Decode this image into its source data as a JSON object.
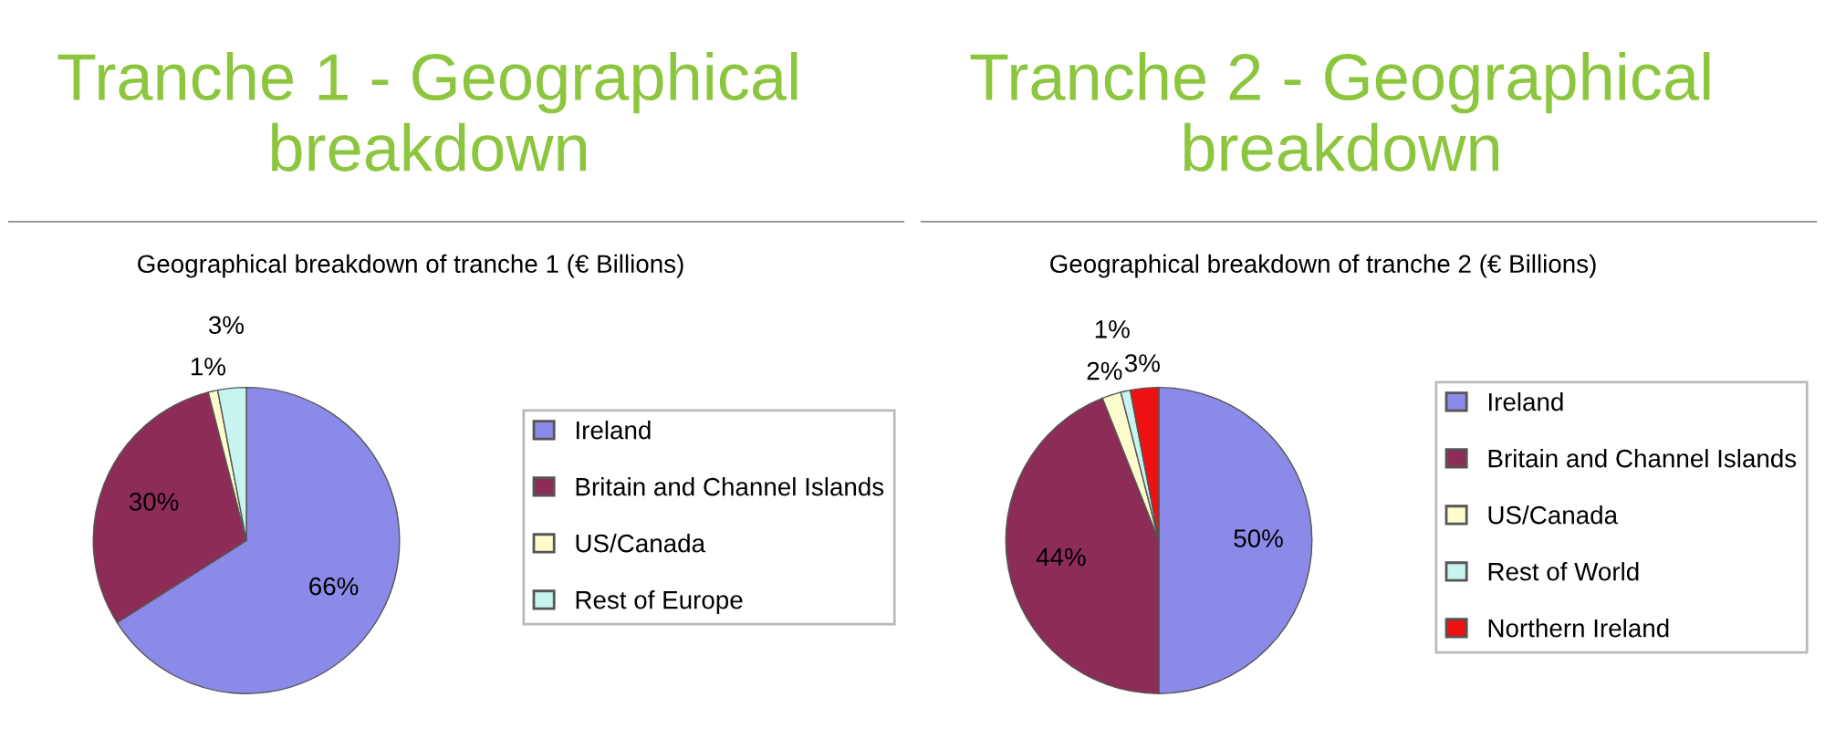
{
  "chart_data": [
    {
      "type": "pie",
      "title": "Tranche 1 - Geographical breakdown",
      "subtitle": "Geographical breakdown of tranche 1 (€ Billions)",
      "categories": [
        "Ireland",
        "Britain and Channel Islands",
        "US/Canada",
        "Rest of Europe"
      ],
      "values": [
        66,
        30,
        1,
        3
      ],
      "value_labels": [
        "66%",
        "30%",
        "1%",
        "3%"
      ],
      "colors": [
        "#8b8ae8",
        "#8e2c58",
        "#fdfccc",
        "#c8f4f0"
      ],
      "legend": "right"
    },
    {
      "type": "pie",
      "title": "Tranche 2 - Geographical breakdown",
      "subtitle": "Geographical breakdown of tranche 2 (€ Billions)",
      "categories": [
        "Ireland",
        "Britain and Channel Islands",
        "US/Canada",
        "Rest of World",
        "Northern Ireland"
      ],
      "values": [
        50,
        44,
        2,
        1,
        3
      ],
      "value_labels": [
        "50%",
        "44%",
        "2%",
        "1%",
        "3%"
      ],
      "colors": [
        "#8b8ae8",
        "#8e2c58",
        "#fdfccc",
        "#c8f4f0",
        "#ee1111"
      ],
      "legend": "right"
    }
  ]
}
